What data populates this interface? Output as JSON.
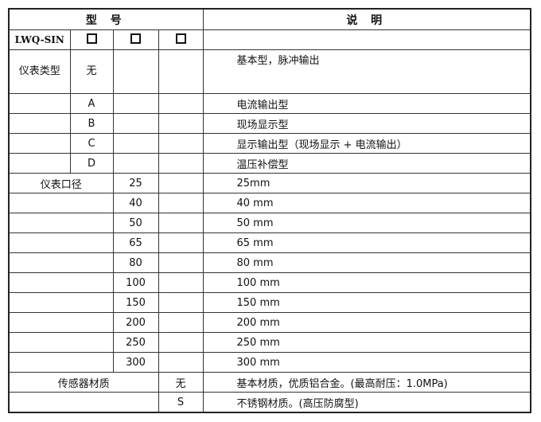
{
  "header": {
    "model": "型 号",
    "description": "说 明"
  },
  "code_row": {
    "prefix": "LWQ-SIN"
  },
  "instrument_type": {
    "label": "仪表类型",
    "options": [
      {
        "code": "无",
        "desc": "基本型，脉冲输出"
      },
      {
        "code": "A",
        "desc": "电流输出型"
      },
      {
        "code": "B",
        "desc": "现场显示型"
      },
      {
        "code": "C",
        "desc": "显示输出型（现场显示 + 电流输出）"
      },
      {
        "code": "D",
        "desc": "温压补偿型"
      }
    ]
  },
  "diameter": {
    "label": "仪表口径",
    "options": [
      {
        "code": "25",
        "desc": "25mm"
      },
      {
        "code": "40",
        "desc": "40 mm"
      },
      {
        "code": "50",
        "desc": "50 mm"
      },
      {
        "code": "65",
        "desc": "65 mm"
      },
      {
        "code": "80",
        "desc": "80 mm"
      },
      {
        "code": "100",
        "desc": "100 mm"
      },
      {
        "code": "150",
        "desc": "150 mm"
      },
      {
        "code": "200",
        "desc": "200 mm"
      },
      {
        "code": "250",
        "desc": "250 mm"
      },
      {
        "code": "300",
        "desc": "300 mm"
      }
    ]
  },
  "material": {
    "label": "传感器材质",
    "options": [
      {
        "code": "无",
        "desc": "基本材质，优质铝合金。(最高耐压：1.0MPa)"
      },
      {
        "code": "S",
        "desc": "不锈钢材质。(高压防腐型)"
      }
    ]
  }
}
